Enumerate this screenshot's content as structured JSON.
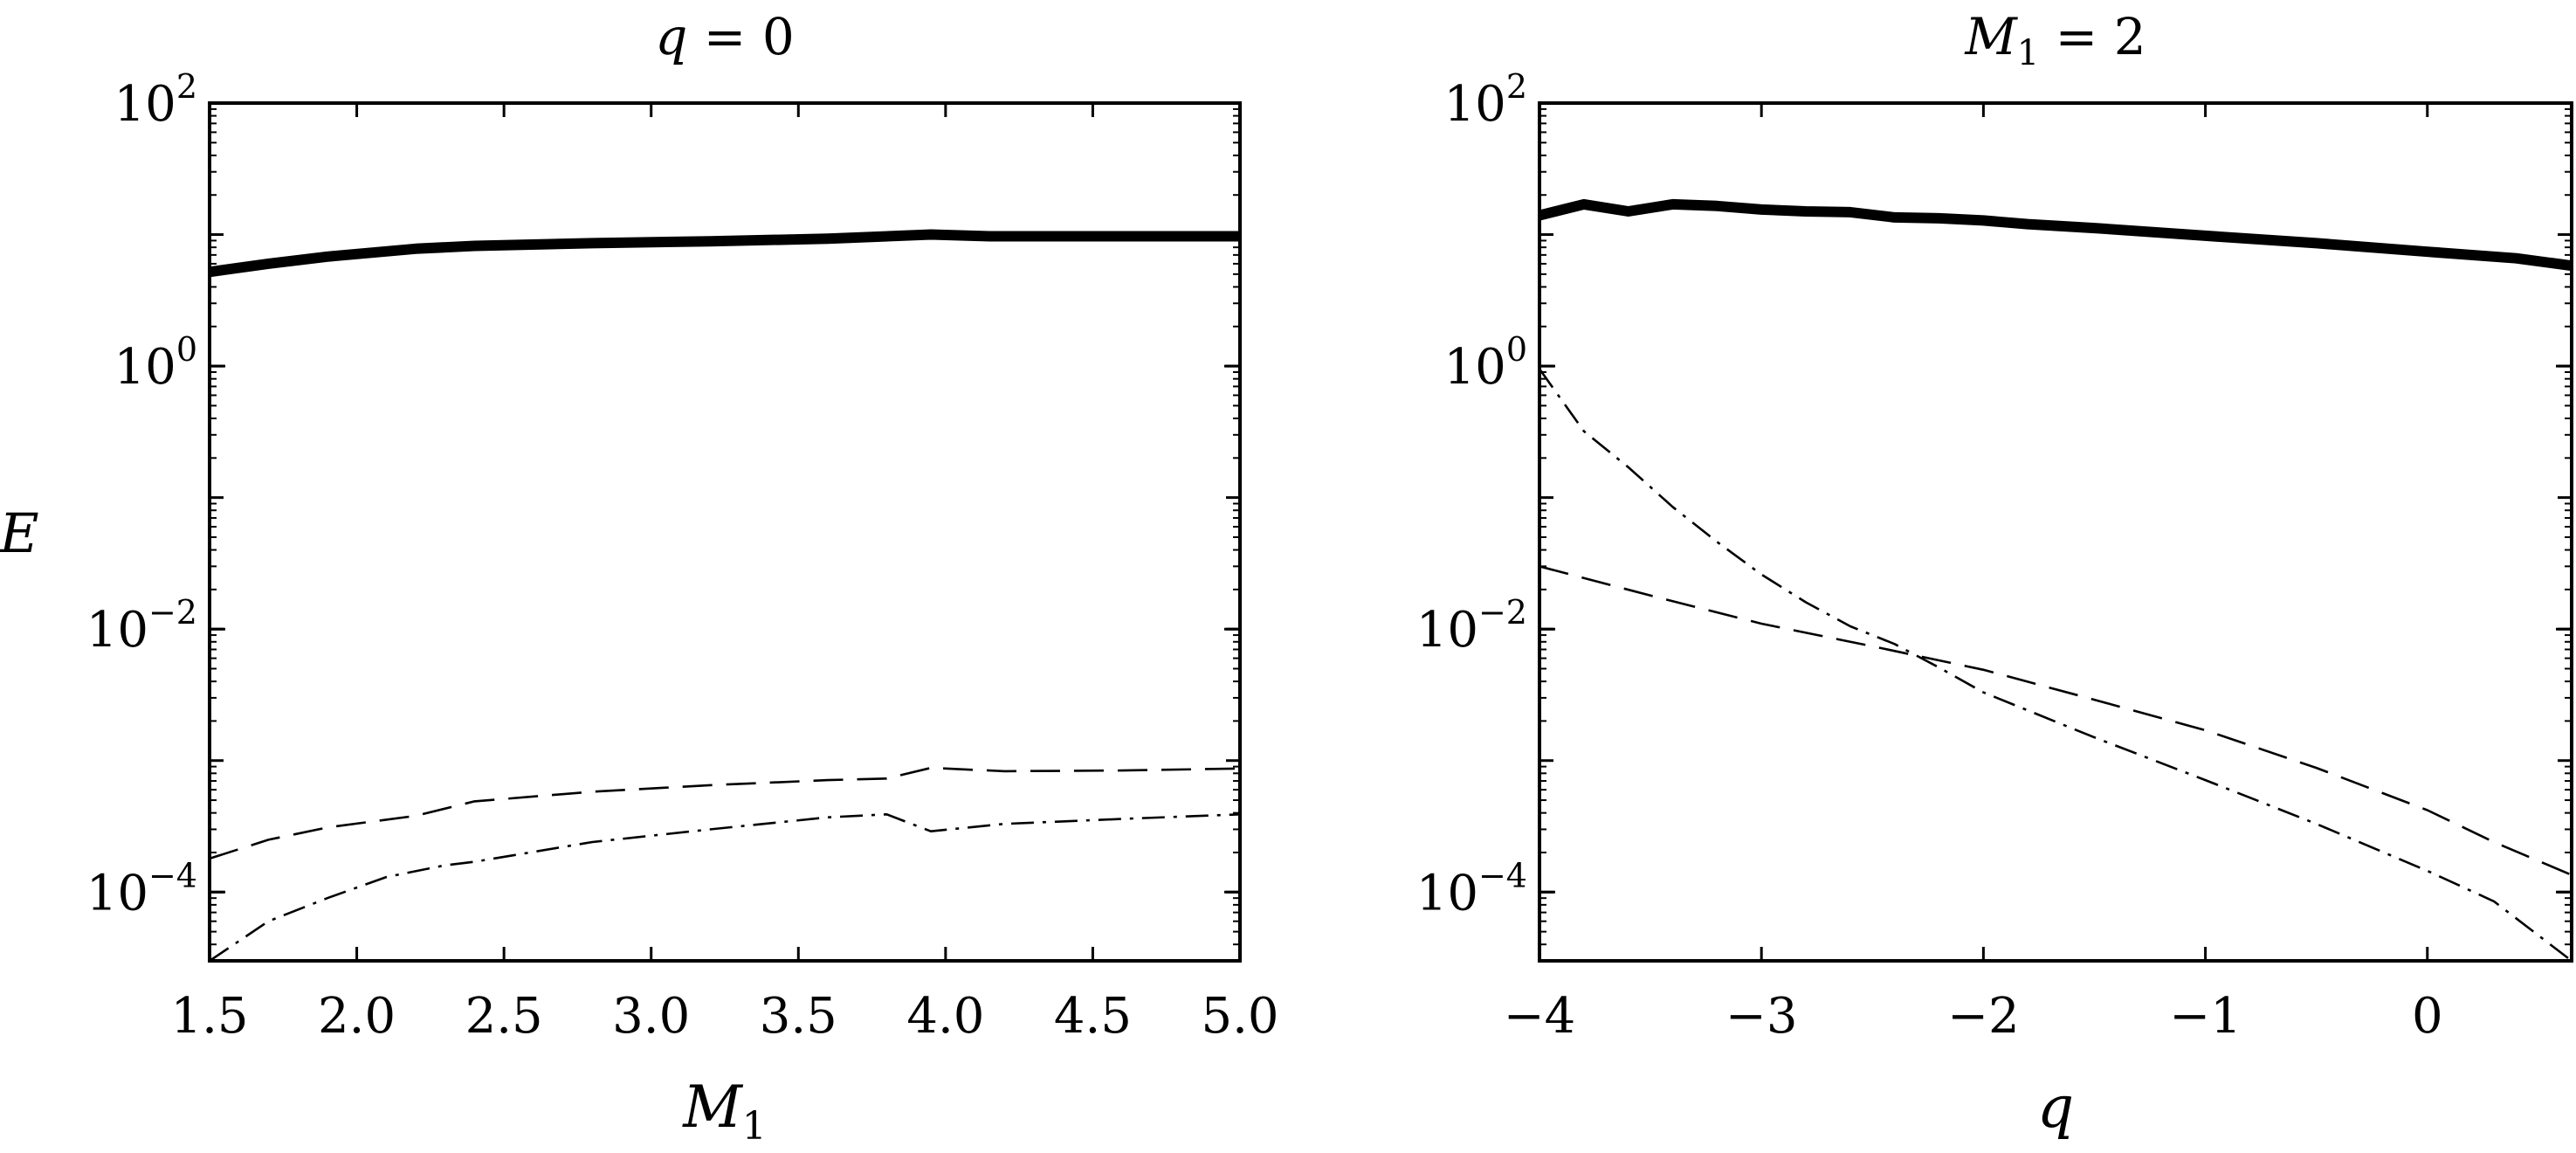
{
  "figure": {
    "ylabel": "E",
    "colors": {
      "ink": "#000000",
      "background": "#ffffff"
    }
  },
  "chart_data": [
    {
      "type": "line",
      "title_var": "q",
      "title_op": "=",
      "title_val": "0",
      "xlabel_main": "M",
      "xlabel_sub": "1",
      "ylabel": "E",
      "yscale": "log",
      "xlim": [
        1.5,
        5.0
      ],
      "ylim": [
        3e-05,
        100
      ],
      "xticks": [
        1.5,
        2.0,
        2.5,
        3.0,
        3.5,
        4.0,
        4.5,
        5.0
      ],
      "xtick_labels": [
        "1.5",
        "2.0",
        "2.5",
        "3.0",
        "3.5",
        "4.0",
        "4.5",
        "5.0"
      ],
      "yticks": [
        {
          "value": 0.0001,
          "base": "10",
          "exp": "−4"
        },
        {
          "value": 0.01,
          "base": "10",
          "exp": "−2"
        },
        {
          "value": 1,
          "base": "10",
          "exp": "0"
        },
        {
          "value": 100,
          "base": "10",
          "exp": "2"
        }
      ],
      "grid": false,
      "series": [
        {
          "style": "solid-thick",
          "x": [
            1.5,
            1.7,
            1.9,
            2.2,
            2.4,
            2.8,
            3.2,
            3.6,
            3.95,
            4.15,
            4.5,
            5.0
          ],
          "y": [
            5.2,
            6.0,
            6.8,
            7.8,
            8.2,
            8.6,
            8.9,
            9.3,
            10.0,
            9.7,
            9.7,
            9.7
          ]
        },
        {
          "style": "dashed",
          "x": [
            1.5,
            1.7,
            1.9,
            2.2,
            2.4,
            2.8,
            3.2,
            3.6,
            3.8,
            3.95,
            4.2,
            4.6,
            5.0
          ],
          "y": [
            0.00018,
            0.00025,
            0.00031,
            0.00038,
            0.00049,
            0.00058,
            0.00065,
            0.00071,
            0.00073,
            0.00088,
            0.00083,
            0.00084,
            0.00087
          ]
        },
        {
          "style": "dashdot",
          "x": [
            1.5,
            1.7,
            1.9,
            2.1,
            2.3,
            2.4,
            2.8,
            3.2,
            3.6,
            3.8,
            3.95,
            4.2,
            4.6,
            5.0
          ],
          "y": [
            3e-05,
            6e-05,
            9e-05,
            0.00013,
            0.00016,
            0.00017,
            0.00024,
            0.0003,
            0.00037,
            0.00039,
            0.00029,
            0.00033,
            0.00036,
            0.00039
          ]
        }
      ]
    },
    {
      "type": "line",
      "title_var": "M",
      "title_sub": "1",
      "title_op": "=",
      "title_val": "2",
      "xlabel_main": "q",
      "ylabel": "",
      "yscale": "log",
      "xlim": [
        -4.0,
        0.65
      ],
      "ylim": [
        3e-05,
        100
      ],
      "xticks": [
        -4,
        -3,
        -2,
        -1,
        0
      ],
      "xtick_labels": [
        "−4",
        "−3",
        "−2",
        "−1",
        "0"
      ],
      "yticks": [
        {
          "value": 0.0001,
          "base": "10",
          "exp": "−4"
        },
        {
          "value": 0.01,
          "base": "10",
          "exp": "−2"
        },
        {
          "value": 1,
          "base": "10",
          "exp": "0"
        },
        {
          "value": 100,
          "base": "10",
          "exp": "2"
        }
      ],
      "grid": false,
      "series": [
        {
          "style": "solid-thick",
          "x": [
            -4.0,
            -3.8,
            -3.6,
            -3.4,
            -3.2,
            -3.0,
            -2.8,
            -2.6,
            -2.4,
            -2.2,
            -2.0,
            -1.8,
            -1.5,
            -1.0,
            -0.5,
            0.0,
            0.4,
            0.65
          ],
          "y": [
            14,
            17,
            15,
            17,
            16.5,
            15.5,
            15,
            14.8,
            13.5,
            13.3,
            12.8,
            12,
            11.2,
            9.8,
            8.6,
            7.4,
            6.6,
            5.8
          ]
        },
        {
          "style": "dashed",
          "x": [
            -4.0,
            -3.5,
            -3.0,
            -2.5,
            -2.0,
            -1.5,
            -1.0,
            -0.5,
            0.0,
            0.3,
            0.65
          ],
          "y": [
            0.03,
            0.018,
            0.011,
            0.0074,
            0.0049,
            0.0029,
            0.0017,
            0.00088,
            0.00042,
            0.00024,
            0.000135
          ]
        },
        {
          "style": "dashdot",
          "x": [
            -4.0,
            -3.8,
            -3.6,
            -3.4,
            -3.2,
            -3.0,
            -2.8,
            -2.6,
            -2.4,
            -2.2,
            -2.0,
            -1.5,
            -1.0,
            -0.5,
            0.0,
            0.3,
            0.65
          ],
          "y": [
            0.95,
            0.32,
            0.17,
            0.085,
            0.046,
            0.026,
            0.016,
            0.0105,
            0.0077,
            0.0051,
            0.0033,
            0.0015,
            0.00071,
            0.00033,
            0.000145,
            8.5e-05,
            3e-05
          ]
        }
      ]
    }
  ]
}
